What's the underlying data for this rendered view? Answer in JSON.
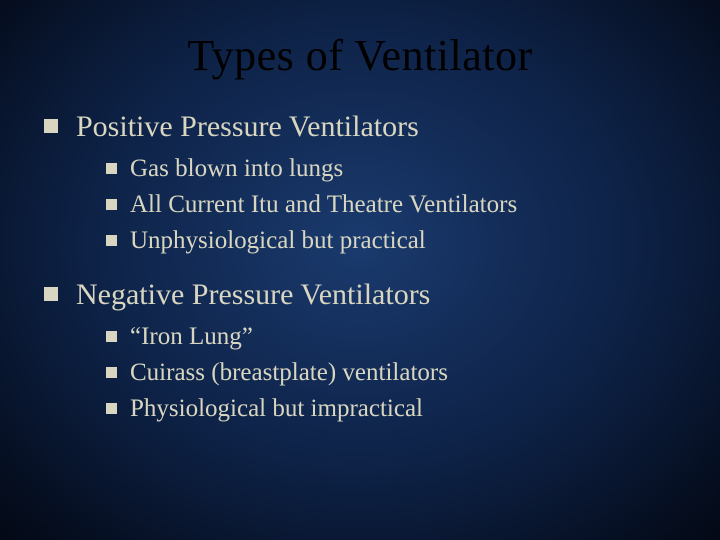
{
  "slide": {
    "background_gradient": [
      "#1a3a6e",
      "#0d2145",
      "#030814"
    ],
    "text_color": "#d8d6c0",
    "title_color": "#000000",
    "title_fontsize": 44,
    "level1_fontsize": 30,
    "level2_fontsize": 25,
    "bullet_shape": "square",
    "font_family": "Garamond, Times New Roman, serif",
    "title": "Types of Ventilator",
    "bullets": [
      {
        "text": "Positive Pressure Ventilators",
        "children": [
          {
            "text": "Gas blown into lungs"
          },
          {
            "text": "All Current Itu and Theatre Ventilators"
          },
          {
            "text": "Unphysiological but practical"
          }
        ]
      },
      {
        "text": "Negative Pressure Ventilators",
        "children": [
          {
            "text": "“Iron Lung”"
          },
          {
            "text": "Cuirass (breastplate) ventilators"
          },
          {
            "text": "Physiological but impractical"
          }
        ]
      }
    ]
  }
}
